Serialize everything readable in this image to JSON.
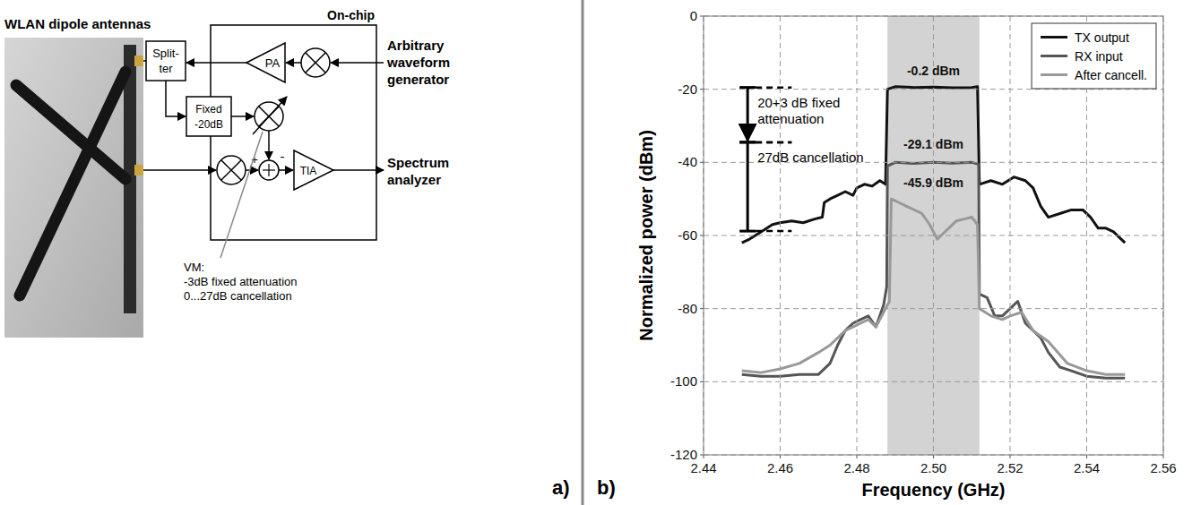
{
  "chart_data": {
    "type": "line",
    "panel_label": "b)",
    "xlabel": "Frequency (GHz)",
    "ylabel": "Normalized power (dBm)",
    "xlim": [
      2.44,
      2.56
    ],
    "ylim": [
      -120,
      0
    ],
    "xticks": [
      2.44,
      2.46,
      2.48,
      {
        "value": 2.5,
        "label": "2.50"
      },
      2.52,
      2.54,
      2.56
    ],
    "yticks": [
      -120,
      -100,
      -80,
      -60,
      -40,
      -20,
      0
    ],
    "grid": true,
    "legend": "upper right",
    "shaded_band": [
      2.488,
      2.512
    ],
    "series": [
      {
        "name": "TX output",
        "color": "#111111",
        "x": [
          2.45,
          2.452,
          2.455,
          2.458,
          2.46,
          2.463,
          2.466,
          2.469,
          2.471,
          2.4715,
          2.473,
          2.475,
          2.477,
          2.479,
          2.48,
          2.482,
          2.484,
          2.486,
          2.4875,
          2.488,
          2.49,
          2.495,
          2.5,
          2.505,
          2.51,
          2.5115,
          2.512,
          2.515,
          2.518,
          2.521,
          2.524,
          2.526,
          2.528,
          2.53,
          2.533,
          2.536,
          2.539,
          2.541,
          2.543,
          2.545,
          2.547,
          2.549,
          2.55
        ],
        "values": [
          -62,
          -61,
          -59,
          -57,
          -56.5,
          -56,
          -56.5,
          -55.5,
          -55,
          -51,
          -50,
          -49,
          -48,
          -49,
          -47,
          -46,
          -46.5,
          -45,
          -46,
          -20,
          -19.3,
          -19.5,
          -19.4,
          -19.6,
          -19.5,
          -19.3,
          -46,
          -45,
          -46,
          -44,
          -45,
          -47,
          -52,
          -55,
          -54,
          -53,
          -53,
          -55,
          -58,
          -58,
          -59,
          -61,
          -62
        ]
      },
      {
        "name": "RX input",
        "color": "#555555",
        "x": [
          2.45,
          2.455,
          2.46,
          2.465,
          2.47,
          2.473,
          2.475,
          2.477,
          2.479,
          2.481,
          2.483,
          2.485,
          2.487,
          2.4878,
          2.488,
          2.49,
          2.495,
          2.5,
          2.505,
          2.51,
          2.5118,
          2.512,
          2.514,
          2.516,
          2.518,
          2.52,
          2.522,
          2.524,
          2.526,
          2.528,
          2.53,
          2.533,
          2.536,
          2.54,
          2.545,
          2.55
        ],
        "values": [
          -98,
          -98.5,
          -98.5,
          -98,
          -98,
          -95,
          -90,
          -86,
          -84,
          -83,
          -82,
          -85,
          -79,
          -74,
          -41,
          -40,
          -40.3,
          -40,
          -40.2,
          -40,
          -40.5,
          -76,
          -77,
          -82,
          -82,
          -80,
          -78,
          -84,
          -86,
          -88,
          -92,
          -96,
          -97,
          -98.5,
          -99,
          -99
        ]
      },
      {
        "name": "After cancell.",
        "color": "#999999",
        "x": [
          2.45,
          2.455,
          2.46,
          2.465,
          2.47,
          2.473,
          2.475,
          2.477,
          2.479,
          2.481,
          2.483,
          2.485,
          2.487,
          2.4885,
          2.489,
          2.491,
          2.493,
          2.495,
          2.497,
          2.499,
          2.501,
          2.502,
          2.504,
          2.506,
          2.508,
          2.51,
          2.5115,
          2.512,
          2.515,
          2.518,
          2.52,
          2.523,
          2.526,
          2.53,
          2.535,
          2.54,
          2.545,
          2.55
        ],
        "values": [
          -97,
          -97.5,
          -96.5,
          -95,
          -92,
          -90,
          -88,
          -86,
          -85,
          -84,
          -83,
          -85,
          -81,
          -78,
          -50,
          -51,
          -52,
          -53,
          -54,
          -57,
          -61,
          -60,
          -58,
          -56,
          -55.5,
          -55,
          -57,
          -80,
          -82,
          -83,
          -82,
          -81,
          -86,
          -89,
          -95,
          -97,
          -98,
          -98
        ]
      }
    ],
    "annotations": [
      {
        "text": "-0.2 dBm",
        "x": 2.5,
        "y": -15
      },
      {
        "text": "-29.1 dBm",
        "x": 2.5,
        "y": -35
      },
      {
        "text": "-45.9 dBm",
        "x": 2.5,
        "y": -45.5
      }
    ],
    "brackets": [
      {
        "label": "20+3 dB fixed attenuation",
        "x": 2.4515,
        "from": -19.5,
        "to": -34.5,
        "dash_to": 2.463
      },
      {
        "label": "27dB cancellation",
        "x": 2.4515,
        "from": -34.5,
        "to": -58.8,
        "dash_to": 2.463
      }
    ]
  },
  "diagram": {
    "panel_label": "a)",
    "photo_title": "WLAN dipole antennas",
    "chip_label": "On-chip",
    "splitter": [
      "Split-",
      "ter"
    ],
    "attenuator": [
      "Fixed",
      "-20dB"
    ],
    "pa": "PA",
    "tia": "TIA",
    "sum_plus": "+",
    "sum_minus": "-",
    "source": [
      "Arbitrary",
      "waveform",
      "generator"
    ],
    "sink": [
      "Spectrum",
      "analyzer"
    ],
    "vm_note": [
      "VM:",
      "-3dB fixed attenuation",
      "0...27dB cancellation"
    ]
  }
}
